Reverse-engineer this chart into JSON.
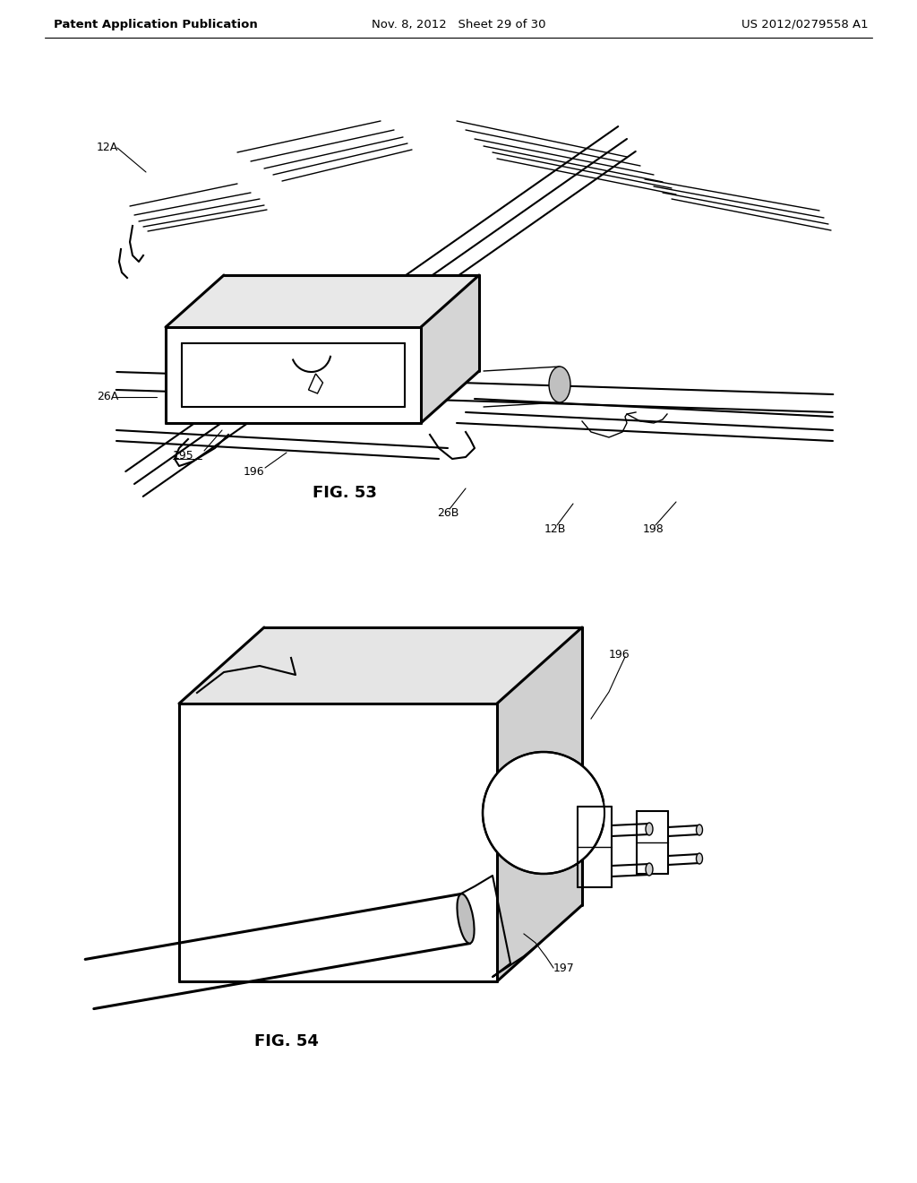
{
  "fig_width": 10.24,
  "fig_height": 13.2,
  "background_color": "#ffffff",
  "header_left": "Patent Application Publication",
  "header_center": "Nov. 8, 2012   Sheet 29 of 30",
  "header_right": "US 2012/0279558 A1",
  "fig53_label": "FIG. 53",
  "fig54_label": "FIG. 54",
  "line_color": "#000000",
  "lw_thin": 1.0,
  "lw_mid": 1.5,
  "lw_thick": 2.2,
  "label_fontsize": 9,
  "header_fontsize": 9.5,
  "fig_label_fontsize": 13
}
